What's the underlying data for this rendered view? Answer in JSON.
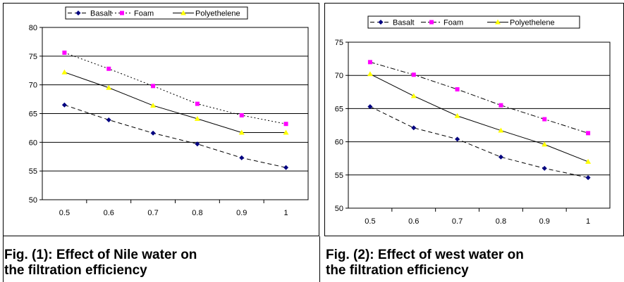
{
  "chart_data": [
    {
      "type": "line",
      "x": [
        0.5,
        0.6,
        0.7,
        0.8,
        0.9,
        1
      ],
      "xtick_labels": [
        "0.5",
        "0.6",
        "0.7",
        "0.8",
        "0.9",
        "1"
      ],
      "ylim": [
        50,
        80
      ],
      "yticks": [
        50,
        55,
        60,
        65,
        70,
        75,
        80
      ],
      "grid": true,
      "legend_position": "top",
      "series": [
        {
          "name": "Basalt",
          "values": [
            66.5,
            63.9,
            61.6,
            59.7,
            57.3,
            55.6
          ],
          "color": "#000080",
          "marker": "diamond",
          "dash": "dashed"
        },
        {
          "name": "Foam",
          "values": [
            75.6,
            72.8,
            69.8,
            66.7,
            64.7,
            63.2
          ],
          "color": "#ff00ff",
          "marker": "square",
          "dash": "dotted"
        },
        {
          "name": "Polyethelene",
          "values": [
            72.2,
            69.5,
            66.4,
            64.1,
            61.7,
            61.7
          ],
          "color": "#ffff00",
          "marker": "triangle",
          "dash": "solid"
        }
      ],
      "caption_lines": [
        "Fig. (1): Effect of Nile water on",
        "the filtration efficiency"
      ]
    },
    {
      "type": "line",
      "x": [
        0.5,
        0.6,
        0.7,
        0.8,
        0.9,
        1
      ],
      "xtick_labels": [
        "0.5",
        "0.6",
        "0.7",
        "0.8",
        "0.9",
        "1"
      ],
      "ylim": [
        50,
        75
      ],
      "yticks": [
        50,
        55,
        60,
        65,
        70,
        75
      ],
      "grid": true,
      "legend_position": "top",
      "series": [
        {
          "name": "Basalt",
          "values": [
            65.3,
            62.1,
            60.4,
            57.7,
            56.0,
            54.6
          ],
          "color": "#000080",
          "marker": "diamond",
          "dash": "dashed"
        },
        {
          "name": "Foam",
          "values": [
            72.0,
            70.1,
            67.9,
            65.5,
            63.4,
            61.3
          ],
          "color": "#ff00ff",
          "marker": "square",
          "dash": "dashdot"
        },
        {
          "name": "Polyethelene",
          "values": [
            70.2,
            66.9,
            63.9,
            61.7,
            59.6,
            57.0
          ],
          "color": "#ffff00",
          "marker": "triangle",
          "dash": "solid"
        }
      ],
      "caption_lines": [
        "Fig. (2): Effect of west water on",
        "the filtration efficiency"
      ]
    }
  ]
}
